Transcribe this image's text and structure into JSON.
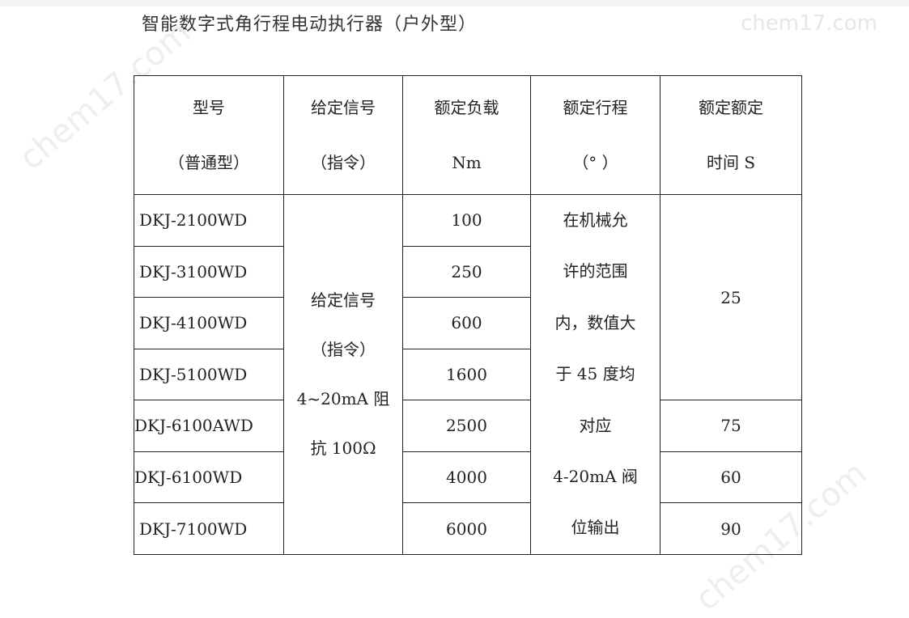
{
  "title": "智能数字式角行程电动执行器（户外型）",
  "watermark": "chem17.com",
  "table": {
    "headers": [
      [
        "型号",
        "（普通型）"
      ],
      [
        "给定信号",
        "（指令）"
      ],
      [
        "额定负载",
        "Nm"
      ],
      [
        "额定行程",
        "（°  ）"
      ],
      [
        "额定额定",
        "时间  S"
      ]
    ],
    "models": [
      "DKJ-2100WD",
      "DKJ-3100WD",
      "DKJ-4100WD",
      "DKJ-5100WD",
      "DKJ-6100AWD",
      "DKJ-6100WD",
      "DKJ-7100WD"
    ],
    "loads": [
      "100",
      "250",
      "600",
      "1600",
      "2500",
      "4000",
      "6000"
    ],
    "signal_lines": [
      "给定信号",
      "（指令）",
      "4~20mA 阻",
      "抗  100Ω"
    ],
    "travel_lines": [
      "在机械允",
      "许的范围",
      "内，数值大",
      "于 45 度均",
      "对应",
      "4-20mA 阀",
      "位输出"
    ],
    "times": [
      "25",
      "75",
      "60",
      "90"
    ]
  }
}
